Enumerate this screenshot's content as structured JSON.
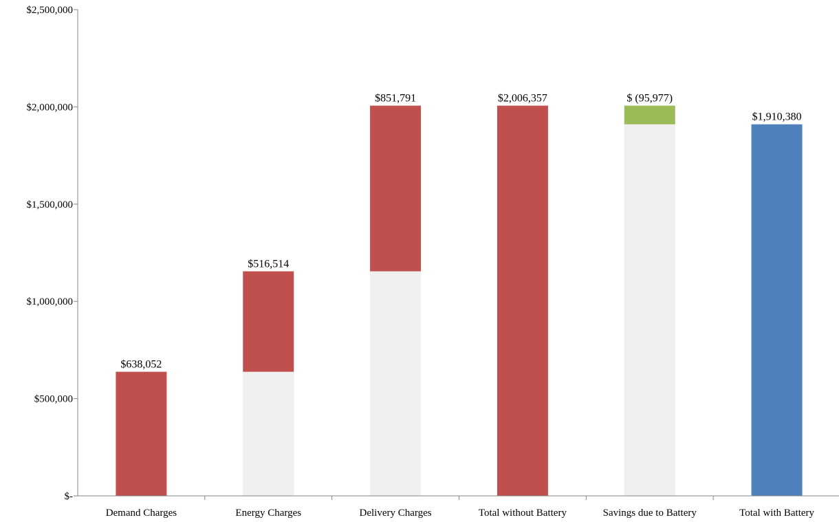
{
  "chart_data": {
    "type": "bar",
    "subtype": "waterfall",
    "title": "",
    "xlabel": "",
    "ylabel": "",
    "ylim": [
      0,
      2500000
    ],
    "y_ticks": [
      0,
      500000,
      1000000,
      1500000,
      2000000,
      2500000
    ],
    "y_tick_labels": [
      "$-",
      "$500,000",
      "$1,000,000",
      "$1,500,000",
      "$2,000,000",
      "$2,500,000"
    ],
    "grid": false,
    "legend": "none",
    "categories": [
      "Demand Charges",
      "Energy Charges",
      "Delivery Charges",
      "Total without Battery",
      "Savings due to Battery",
      "Total with Battery"
    ],
    "bars": [
      {
        "base": 0,
        "value": 638052,
        "top": 638052,
        "kind": "increase",
        "label": "$638,052"
      },
      {
        "base": 638052,
        "value": 516514,
        "top": 1154566,
        "kind": "increase",
        "label": "$516,514"
      },
      {
        "base": 1154566,
        "value": 851791,
        "top": 2006357,
        "kind": "increase",
        "label": "$851,791"
      },
      {
        "base": 0,
        "value": 2006357,
        "top": 2006357,
        "kind": "total",
        "label": "$2,006,357"
      },
      {
        "base": 1910380,
        "value": -95977,
        "top": 2006357,
        "kind": "decrease",
        "label": "$ (95,977)"
      },
      {
        "base": 0,
        "value": 1910380,
        "top": 1910380,
        "kind": "final",
        "label": "$1,910,380"
      }
    ],
    "colors": {
      "increase": "#c0504d",
      "total": "#c0504d",
      "decrease": "#9bbb59",
      "final": "#4f81bd",
      "base": "#f0f0f0",
      "axis": "#868686"
    }
  }
}
